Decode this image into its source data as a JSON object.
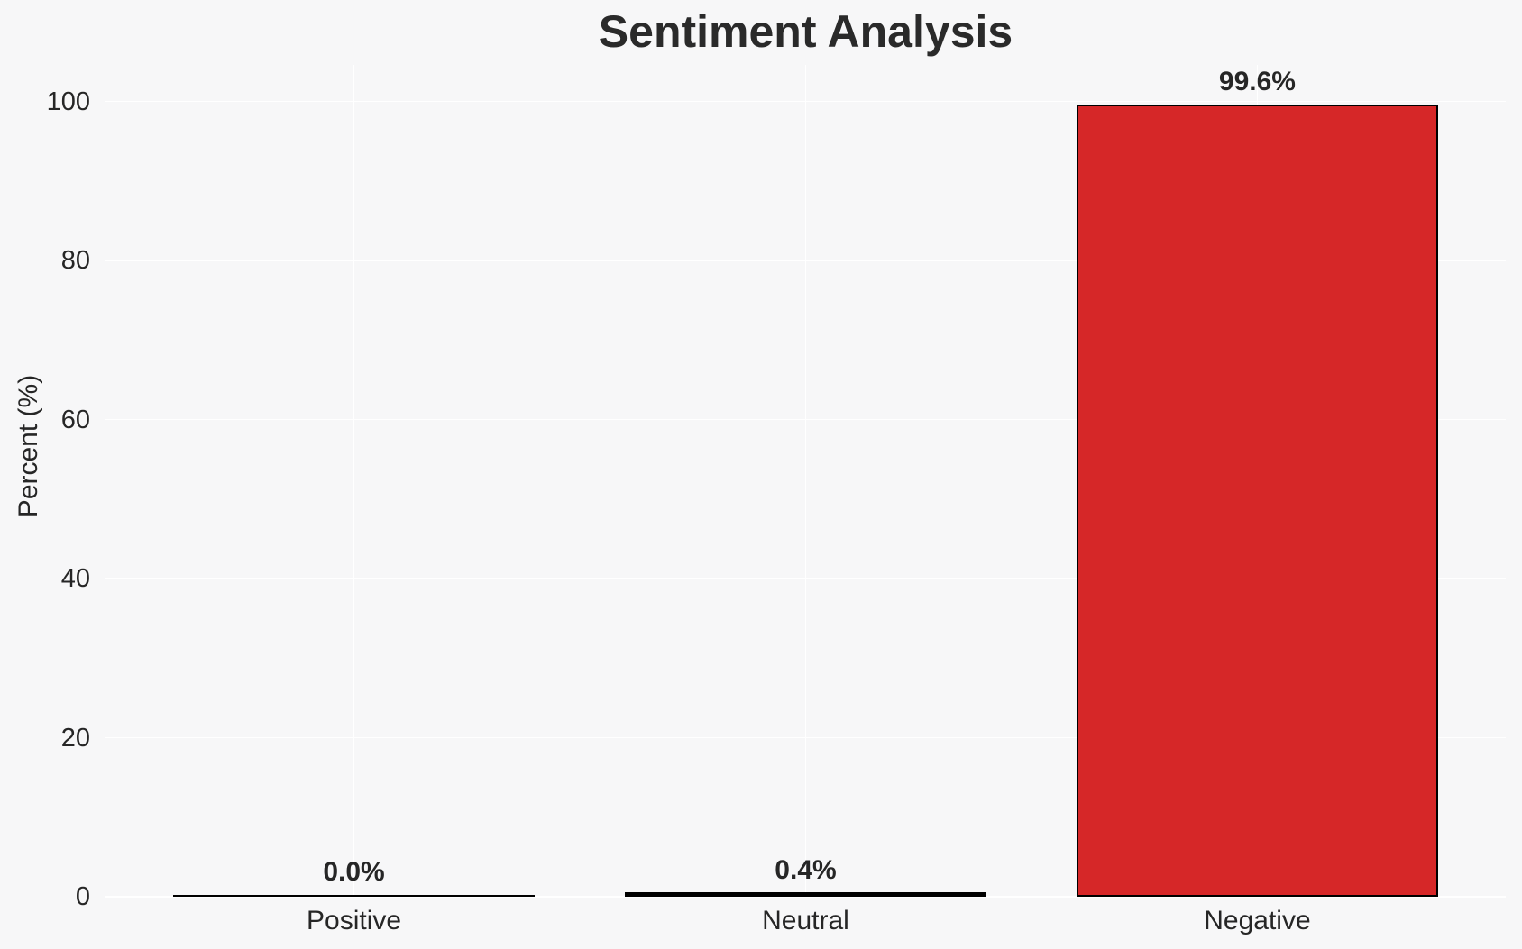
{
  "chart_data": {
    "type": "bar",
    "title": "Sentiment Analysis",
    "categories": [
      "Positive",
      "Neutral",
      "Negative"
    ],
    "values": [
      0.0,
      0.4,
      99.6
    ],
    "value_labels": [
      "0.0%",
      "0.4%",
      "99.6%"
    ],
    "xlabel": "",
    "ylabel": "Percent (%)",
    "yticks": [
      0,
      20,
      40,
      60,
      80,
      100
    ],
    "ylim": [
      0,
      104.6
    ],
    "grid": true,
    "legend": "none",
    "bar_width_fraction": 0.8,
    "colors": {
      "negative_bar": "#d62728",
      "zero_height_bars": "#0d0d0d",
      "bar_edge": "#000000",
      "background": "#f7f7f8",
      "gridline": "#ffffff",
      "text": "#262626"
    },
    "bar_fill_colors": [
      "#0d0d0d",
      "#0d0d0d",
      "#d62728"
    ]
  }
}
